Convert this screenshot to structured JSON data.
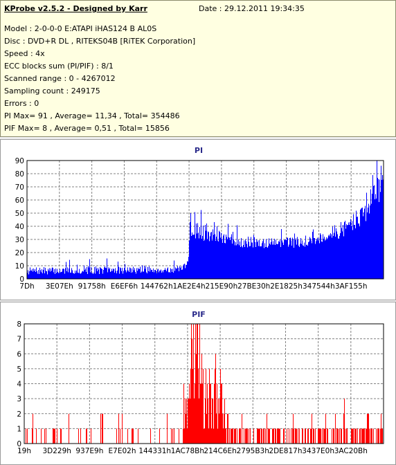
{
  "header": {
    "title": "KProbe v2.5.2 - Designed by Karr",
    "date": "Date : 29.12.2011 19:34:35"
  },
  "info_lines": [
    "Model : 2-0-0-0 E:ATAPI  iHAS124   B      AL0S",
    "Disc : DVD+R DL , RITEKS04B [RiTEK Corporation]",
    "Speed : 4x",
    "ECC blocks sum (PI/PIF) : 8/1",
    "Scanned range : 0 - 4267012",
    "Sampling count : 249175",
    "Errors : 0",
    "PI Max= 91 , Average= 11,34 , Total= 354486",
    "PIF Max= 8 , Average= 0,51 , Total= 15856"
  ],
  "chart_data": [
    {
      "type": "bar",
      "title": "PI",
      "ylim": [
        0,
        90
      ],
      "y_ticks": [
        0,
        10,
        20,
        30,
        40,
        50,
        60,
        70,
        80,
        90
      ],
      "x_tick_labels": [
        "7Dh",
        "3E07Eh",
        "91758h",
        "E6EF6h",
        "144762h",
        "1AE2E4h",
        "215E90h",
        "27BE30h",
        "2E1825h",
        "347544h",
        "3AF155h"
      ],
      "xlim": [
        0,
        4267012
      ],
      "grid": true,
      "color": "#0000ff",
      "profile": [
        [
          0,
          6,
          4
        ],
        [
          0.43,
          7,
          4
        ],
        [
          0.445,
          9,
          5
        ],
        [
          0.454,
          13,
          6
        ],
        [
          0.455,
          40,
          14
        ],
        [
          0.47,
          38,
          12
        ],
        [
          0.52,
          33,
          7
        ],
        [
          0.6,
          28,
          6
        ],
        [
          0.7,
          27,
          6
        ],
        [
          0.8,
          29,
          6
        ],
        [
          0.88,
          37,
          9
        ],
        [
          0.94,
          49,
          12
        ],
        [
          0.98,
          65,
          16
        ],
        [
          1.0,
          75,
          15
        ]
      ],
      "max": 91
    },
    {
      "type": "bar",
      "title": "PIF",
      "ylim": [
        0,
        8
      ],
      "y_ticks": [
        0,
        1,
        2,
        3,
        4,
        5,
        6,
        7,
        8
      ],
      "x_tick_labels": [
        "19h",
        "3D229h",
        "937E9h",
        "E7E02h",
        "144331h",
        "1AC78Bh",
        "214C6Eh",
        "2795B3h",
        "2DE817h",
        "3437E0h",
        "3AC20Bh"
      ],
      "xlim": [
        0,
        4267012
      ],
      "grid": true,
      "color": "#ff0000",
      "max": 8
    }
  ]
}
